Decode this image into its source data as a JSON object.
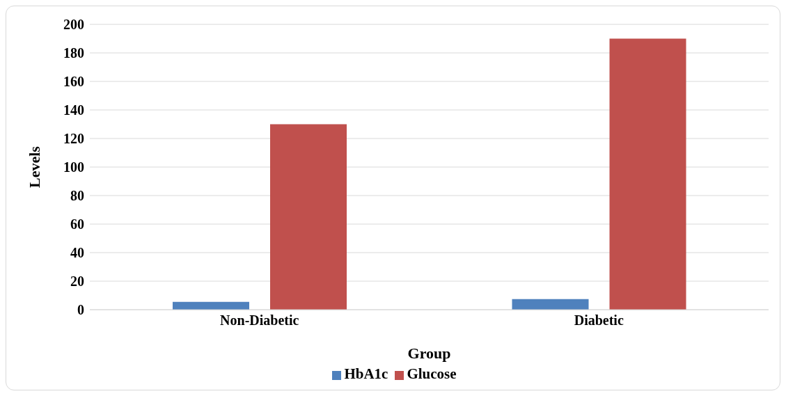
{
  "chart_data": {
    "type": "bar",
    "xlabel": "Group",
    "ylabel": "Levels",
    "categories": [
      "Non-Diabetic",
      "Diabetic"
    ],
    "series": [
      {
        "name": "HbA1c",
        "color": "#4f81bd",
        "values": [
          5.5,
          7.5
        ]
      },
      {
        "name": "Glucose",
        "color": "#c0504d",
        "values": [
          130,
          190
        ]
      }
    ],
    "ylim": [
      0,
      200
    ],
    "yticks": [
      0,
      20,
      40,
      60,
      80,
      100,
      120,
      140,
      160,
      180,
      200
    ],
    "grid": "y",
    "legend": "bottom"
  }
}
